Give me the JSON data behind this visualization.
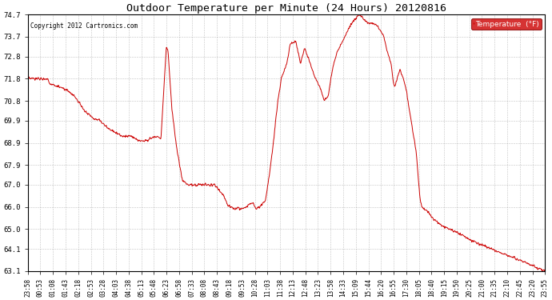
{
  "title": "Outdoor Temperature per Minute (24 Hours) 20120816",
  "copyright_text": "Copyright 2012 Cartronics.com",
  "legend_label": "Temperature  (°F)",
  "line_color": "#cc0000",
  "background_color": "#ffffff",
  "grid_color": "#999999",
  "ylim": [
    63.1,
    74.7
  ],
  "yticks": [
    63.1,
    64.1,
    65.0,
    66.0,
    67.0,
    67.9,
    68.9,
    69.9,
    70.8,
    71.8,
    72.8,
    73.7,
    74.7
  ],
  "xtick_labels": [
    "23:58",
    "00:53",
    "01:08",
    "01:43",
    "02:18",
    "02:53",
    "03:28",
    "04:03",
    "04:38",
    "05:13",
    "05:48",
    "06:23",
    "06:58",
    "07:33",
    "08:08",
    "08:43",
    "09:18",
    "09:53",
    "10:28",
    "11:03",
    "11:38",
    "12:13",
    "12:48",
    "13:23",
    "13:58",
    "14:33",
    "15:09",
    "15:44",
    "16:20",
    "16:55",
    "17:30",
    "18:05",
    "18:40",
    "19:15",
    "19:50",
    "20:25",
    "21:00",
    "21:35",
    "22:10",
    "22:45",
    "23:20",
    "23:55"
  ],
  "legend_bg": "#cc0000",
  "legend_text_color": "#ffffff",
  "figwidth": 6.9,
  "figheight": 3.75,
  "dpi": 100
}
